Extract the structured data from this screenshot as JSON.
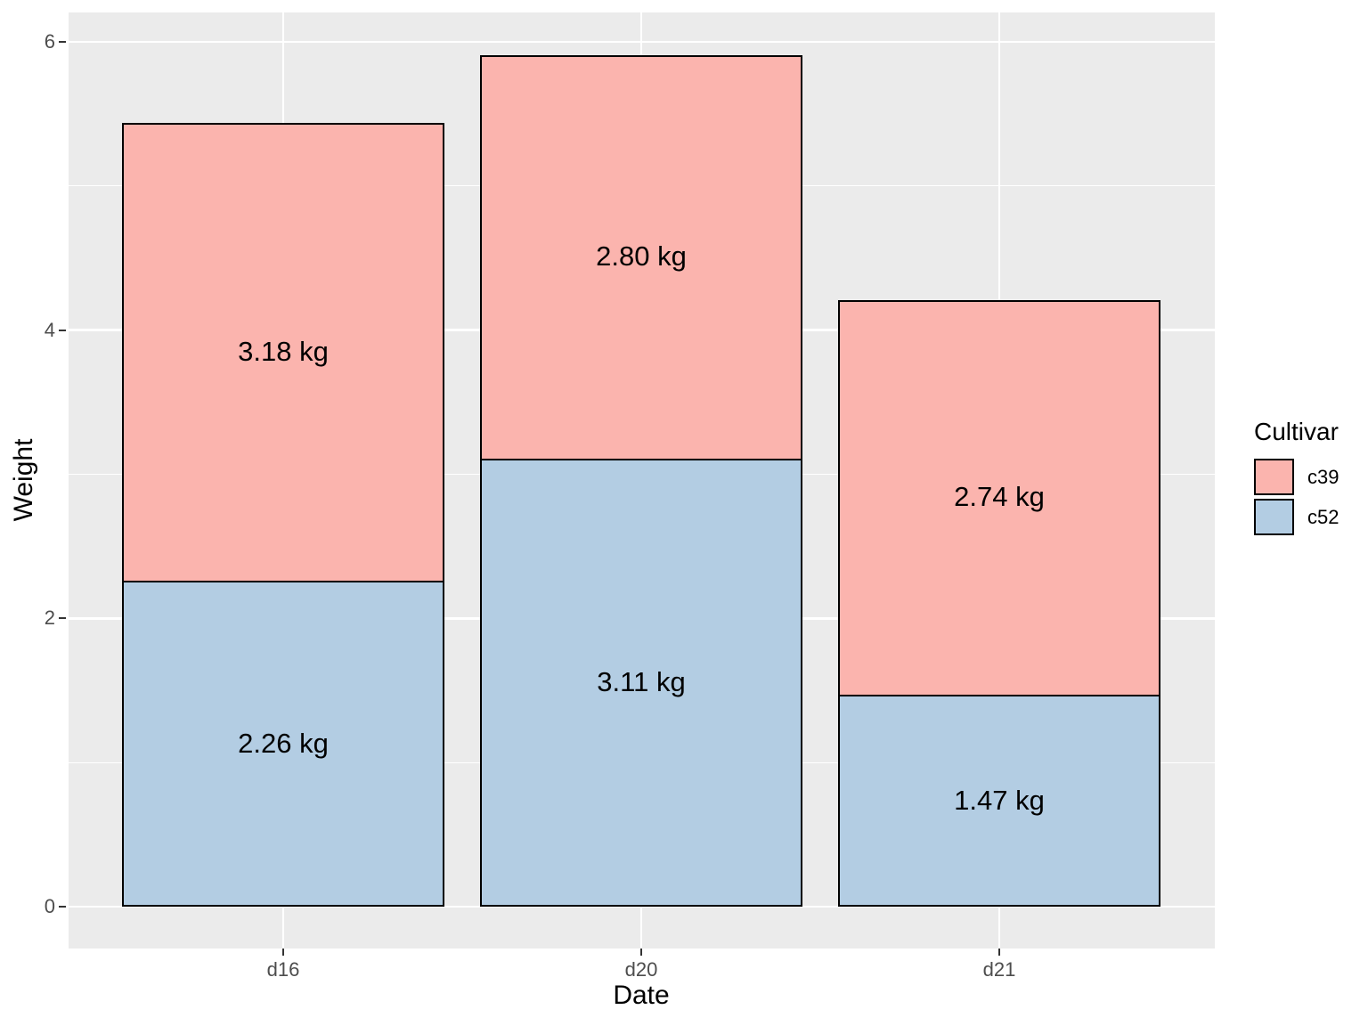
{
  "chart_data": {
    "type": "bar",
    "stacked": true,
    "title": "",
    "xlabel": "Date",
    "ylabel": "Weight",
    "categories": [
      "d16",
      "d20",
      "d21"
    ],
    "series": [
      {
        "name": "c52",
        "color": "#B3CDE3",
        "values": [
          2.26,
          3.11,
          1.47
        ],
        "value_labels": [
          "2.26 kg",
          "3.11 kg",
          "1.47 kg"
        ]
      },
      {
        "name": "c39",
        "color": "#FBB4AE",
        "values": [
          3.18,
          2.8,
          2.74
        ],
        "value_labels": [
          "3.18 kg",
          "2.80 kg",
          "2.74 kg"
        ]
      }
    ],
    "totals": [
      5.44,
      5.91,
      4.21
    ],
    "y_axis": {
      "ticks": [
        0,
        2,
        4,
        6
      ],
      "tick_labels": [
        "0",
        "2",
        "4",
        "6"
      ],
      "minor_ticks": [
        1,
        3,
        5
      ],
      "range": [
        -0.3,
        6.21
      ]
    },
    "legend": {
      "title": "Cultivar",
      "position": "right",
      "entries": [
        {
          "label": "c39",
          "color": "#FBB4AE"
        },
        {
          "label": "c52",
          "color": "#B3CDE3"
        }
      ]
    },
    "style": {
      "panel_background": "#EBEBEB",
      "grid_color": "#FFFFFF",
      "bar_outline": "#000000",
      "axis_text_color": "#4D4D4D",
      "tick_mark_color": "#333333",
      "label_color": "#000000"
    }
  }
}
